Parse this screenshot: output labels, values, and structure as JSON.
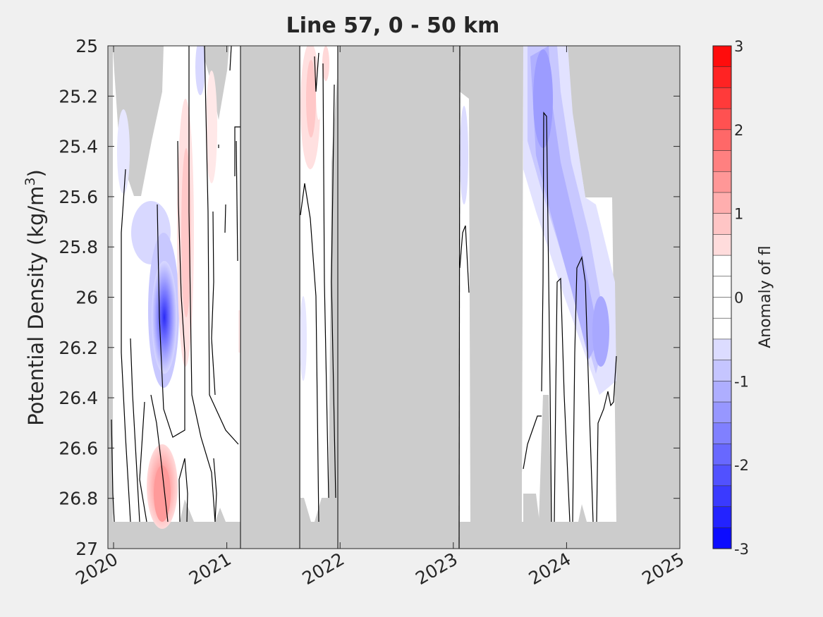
{
  "chart_data": {
    "type": "heatmap",
    "title": "Line 57, 0 - 50 km",
    "ylabel": "Potential Density (kg/m",
    "ylabel_sup": "3",
    "ylabel_close": ")",
    "colorbar_label": "Anomaly of fl",
    "x_ticks": [
      "2020",
      "2021",
      "2022",
      "2023",
      "2024",
      "2025"
    ],
    "y_ticks": [
      "25",
      "25.2",
      "25.4",
      "25.6",
      "25.8",
      "26",
      "26.2",
      "26.4",
      "26.6",
      "26.8",
      "27"
    ],
    "colorbar_ticks": [
      "3",
      "2",
      "1",
      "0",
      "-1",
      "-2",
      "-3"
    ],
    "xlim": [
      2019.95,
      2025.0
    ],
    "ylim": [
      25.0,
      27.0
    ],
    "y_reversed": true,
    "clim": [
      -3,
      3
    ],
    "colormap": "blue-white-red",
    "missing_color": "#cccccc",
    "sections": [
      {
        "x_start": 2020.0,
        "x_end": 2021.1,
        "data_top": 25.0,
        "data_bottom": 26.9
      },
      {
        "x_start": 2021.63,
        "x_end": 2021.96,
        "data_top": 25.0,
        "data_bottom": 26.8
      },
      {
        "x_start": 2023.0,
        "x_end": 2023.1,
        "data_top": 25.2,
        "data_bottom": 26.9
      },
      {
        "x_start": 2023.6,
        "x_end": 2024.45,
        "data_top": 25.0,
        "data_bottom": 26.9
      }
    ],
    "annotations": {
      "min_anomaly_location": {
        "x": 2020.42,
        "y": 26.1,
        "value": -2.6
      },
      "max_anomaly_location": {
        "x": 2020.4,
        "y": 26.85,
        "value": 1.1
      }
    }
  }
}
